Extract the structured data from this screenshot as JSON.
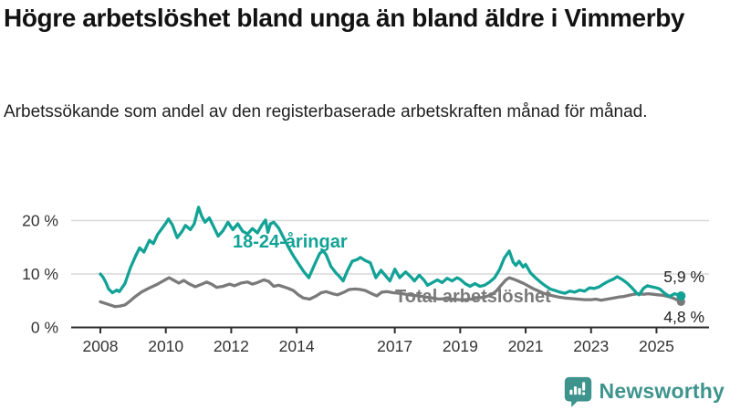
{
  "chart_data": {
    "type": "line",
    "title": "Högre arbetslöshet bland unga än bland äldre i Vimmerby",
    "subtitle": "Arbetssökande som andel av den registerbaserade arbetskraften månad för månad.",
    "xlabel": "",
    "ylabel": "",
    "xlim": [
      2007.3,
      2026.4
    ],
    "ylim": [
      0,
      24
    ],
    "grid": "horizontal",
    "legend_position": "inline-labels-on-chart",
    "x_ticks": [
      2008,
      2010,
      2012,
      2014,
      2017,
      2019,
      2021,
      2023,
      2025
    ],
    "x_tick_labels": [
      "2008",
      "2010",
      "2012",
      "2014",
      "2017",
      "2019",
      "2021",
      "2023",
      "2025"
    ],
    "y_ticks": [
      0,
      10,
      20
    ],
    "y_tick_labels": [
      "0 %",
      "10 %",
      "20 %"
    ],
    "series": [
      {
        "name": "18-24-åringar",
        "color": "#12a296",
        "end_value": 5.9,
        "end_label": "5,9 %",
        "points": [
          [
            2008.0,
            10.0
          ],
          [
            2008.08,
            9.4
          ],
          [
            2008.17,
            8.4
          ],
          [
            2008.25,
            7.2
          ],
          [
            2008.37,
            6.5
          ],
          [
            2008.5,
            7.0
          ],
          [
            2008.58,
            6.7
          ],
          [
            2008.75,
            8.2
          ],
          [
            2008.92,
            11.2
          ],
          [
            2009.08,
            13.4
          ],
          [
            2009.2,
            14.9
          ],
          [
            2009.33,
            14.1
          ],
          [
            2009.5,
            16.3
          ],
          [
            2009.62,
            15.7
          ],
          [
            2009.75,
            17.4
          ],
          [
            2009.87,
            18.4
          ],
          [
            2010.0,
            19.5
          ],
          [
            2010.08,
            20.3
          ],
          [
            2010.2,
            19.2
          ],
          [
            2010.35,
            16.8
          ],
          [
            2010.5,
            18.0
          ],
          [
            2010.6,
            19.1
          ],
          [
            2010.75,
            18.3
          ],
          [
            2010.87,
            19.4
          ],
          [
            2011.0,
            22.5
          ],
          [
            2011.1,
            20.8
          ],
          [
            2011.2,
            19.7
          ],
          [
            2011.33,
            20.5
          ],
          [
            2011.45,
            19.0
          ],
          [
            2011.6,
            17.1
          ],
          [
            2011.75,
            18.1
          ],
          [
            2011.9,
            19.7
          ],
          [
            2012.05,
            18.3
          ],
          [
            2012.2,
            19.4
          ],
          [
            2012.35,
            18.0
          ],
          [
            2012.5,
            17.5
          ],
          [
            2012.65,
            18.5
          ],
          [
            2012.8,
            17.7
          ],
          [
            2012.95,
            19.3
          ],
          [
            2013.05,
            20.1
          ],
          [
            2013.12,
            17.8
          ],
          [
            2013.2,
            19.4
          ],
          [
            2013.3,
            19.7
          ],
          [
            2013.45,
            18.6
          ],
          [
            2013.6,
            16.8
          ],
          [
            2013.75,
            15.0
          ],
          [
            2013.9,
            13.4
          ],
          [
            2014.05,
            12.0
          ],
          [
            2014.2,
            10.6
          ],
          [
            2014.37,
            9.3
          ],
          [
            2014.55,
            11.8
          ],
          [
            2014.7,
            13.8
          ],
          [
            2014.8,
            14.4
          ],
          [
            2014.9,
            13.6
          ],
          [
            2015.05,
            11.4
          ],
          [
            2015.2,
            10.2
          ],
          [
            2015.3,
            9.6
          ],
          [
            2015.42,
            8.7
          ],
          [
            2015.55,
            10.6
          ],
          [
            2015.7,
            12.4
          ],
          [
            2015.85,
            12.7
          ],
          [
            2015.95,
            13.1
          ],
          [
            2016.1,
            12.5
          ],
          [
            2016.25,
            12.1
          ],
          [
            2016.42,
            9.3
          ],
          [
            2016.58,
            10.7
          ],
          [
            2016.7,
            9.8
          ],
          [
            2016.85,
            8.7
          ],
          [
            2017.0,
            10.9
          ],
          [
            2017.15,
            9.3
          ],
          [
            2017.33,
            10.4
          ],
          [
            2017.5,
            9.4
          ],
          [
            2017.6,
            8.7
          ],
          [
            2017.75,
            9.8
          ],
          [
            2017.9,
            8.8
          ],
          [
            2018.0,
            7.9
          ],
          [
            2018.15,
            8.4
          ],
          [
            2018.3,
            8.9
          ],
          [
            2018.45,
            8.4
          ],
          [
            2018.6,
            9.2
          ],
          [
            2018.75,
            8.7
          ],
          [
            2018.9,
            9.3
          ],
          [
            2019.0,
            9.0
          ],
          [
            2019.15,
            8.2
          ],
          [
            2019.3,
            7.7
          ],
          [
            2019.45,
            8.2
          ],
          [
            2019.6,
            7.7
          ],
          [
            2019.75,
            7.9
          ],
          [
            2019.9,
            8.5
          ],
          [
            2020.05,
            9.3
          ],
          [
            2020.2,
            10.8
          ],
          [
            2020.35,
            13.0
          ],
          [
            2020.5,
            14.3
          ],
          [
            2020.62,
            12.2
          ],
          [
            2020.7,
            11.6
          ],
          [
            2020.8,
            12.4
          ],
          [
            2020.92,
            11.3
          ],
          [
            2021.0,
            11.8
          ],
          [
            2021.15,
            10.2
          ],
          [
            2021.3,
            9.3
          ],
          [
            2021.45,
            8.5
          ],
          [
            2021.6,
            7.8
          ],
          [
            2021.75,
            7.2
          ],
          [
            2021.9,
            6.9
          ],
          [
            2022.05,
            6.6
          ],
          [
            2022.2,
            6.4
          ],
          [
            2022.35,
            6.8
          ],
          [
            2022.5,
            6.6
          ],
          [
            2022.65,
            7.0
          ],
          [
            2022.8,
            6.8
          ],
          [
            2022.95,
            7.4
          ],
          [
            2023.1,
            7.3
          ],
          [
            2023.25,
            7.6
          ],
          [
            2023.4,
            8.2
          ],
          [
            2023.55,
            8.7
          ],
          [
            2023.7,
            9.1
          ],
          [
            2023.8,
            9.5
          ],
          [
            2023.95,
            9.0
          ],
          [
            2024.1,
            8.3
          ],
          [
            2024.25,
            7.4
          ],
          [
            2024.4,
            6.4
          ],
          [
            2024.47,
            6.1
          ],
          [
            2024.6,
            7.3
          ],
          [
            2024.72,
            7.8
          ],
          [
            2024.85,
            7.6
          ],
          [
            2025.0,
            7.4
          ],
          [
            2025.1,
            7.2
          ],
          [
            2025.25,
            6.4
          ],
          [
            2025.4,
            5.8
          ],
          [
            2025.55,
            6.3
          ],
          [
            2025.67,
            6.1
          ],
          [
            2025.75,
            5.9
          ]
        ]
      },
      {
        "name": "Total arbetslöshet",
        "color": "#7a7a7a",
        "end_value": 4.8,
        "end_label": "4,8 %",
        "points": [
          [
            2008.0,
            4.8
          ],
          [
            2008.15,
            4.5
          ],
          [
            2008.3,
            4.2
          ],
          [
            2008.45,
            3.9
          ],
          [
            2008.6,
            4.0
          ],
          [
            2008.75,
            4.2
          ],
          [
            2008.9,
            4.9
          ],
          [
            2009.05,
            5.7
          ],
          [
            2009.25,
            6.6
          ],
          [
            2009.5,
            7.4
          ],
          [
            2009.75,
            8.1
          ],
          [
            2009.95,
            8.8
          ],
          [
            2010.1,
            9.3
          ],
          [
            2010.25,
            8.8
          ],
          [
            2010.4,
            8.3
          ],
          [
            2010.55,
            8.8
          ],
          [
            2010.7,
            8.2
          ],
          [
            2010.9,
            7.6
          ],
          [
            2011.1,
            8.1
          ],
          [
            2011.25,
            8.5
          ],
          [
            2011.4,
            8.1
          ],
          [
            2011.55,
            7.5
          ],
          [
            2011.75,
            7.7
          ],
          [
            2011.95,
            8.1
          ],
          [
            2012.1,
            7.8
          ],
          [
            2012.3,
            8.3
          ],
          [
            2012.5,
            8.5
          ],
          [
            2012.65,
            8.1
          ],
          [
            2012.8,
            8.4
          ],
          [
            2013.0,
            8.9
          ],
          [
            2013.15,
            8.6
          ],
          [
            2013.3,
            7.7
          ],
          [
            2013.45,
            7.9
          ],
          [
            2013.6,
            7.6
          ],
          [
            2013.75,
            7.3
          ],
          [
            2013.9,
            6.9
          ],
          [
            2014.05,
            6.1
          ],
          [
            2014.2,
            5.5
          ],
          [
            2014.4,
            5.3
          ],
          [
            2014.6,
            5.9
          ],
          [
            2014.75,
            6.5
          ],
          [
            2014.9,
            6.7
          ],
          [
            2015.1,
            6.3
          ],
          [
            2015.25,
            6.1
          ],
          [
            2015.45,
            6.6
          ],
          [
            2015.6,
            7.1
          ],
          [
            2015.8,
            7.2
          ],
          [
            2015.95,
            7.1
          ],
          [
            2016.1,
            6.9
          ],
          [
            2016.3,
            6.3
          ],
          [
            2016.45,
            5.9
          ],
          [
            2016.6,
            6.6
          ],
          [
            2016.75,
            6.7
          ],
          [
            2016.95,
            6.5
          ],
          [
            2017.15,
            6.4
          ],
          [
            2017.35,
            6.2
          ],
          [
            2017.55,
            6.0
          ],
          [
            2017.75,
            5.9
          ],
          [
            2017.95,
            5.7
          ],
          [
            2018.15,
            5.5
          ],
          [
            2018.35,
            5.3
          ],
          [
            2018.55,
            5.4
          ],
          [
            2018.75,
            5.3
          ],
          [
            2018.95,
            5.2
          ],
          [
            2019.15,
            5.2
          ],
          [
            2019.35,
            5.3
          ],
          [
            2019.55,
            5.5
          ],
          [
            2019.75,
            5.7
          ],
          [
            2019.95,
            6.1
          ],
          [
            2020.1,
            6.8
          ],
          [
            2020.25,
            7.9
          ],
          [
            2020.4,
            8.9
          ],
          [
            2020.5,
            9.3
          ],
          [
            2020.65,
            9.0
          ],
          [
            2020.8,
            8.6
          ],
          [
            2020.95,
            8.2
          ],
          [
            2021.1,
            7.7
          ],
          [
            2021.25,
            7.2
          ],
          [
            2021.4,
            6.8
          ],
          [
            2021.55,
            6.4
          ],
          [
            2021.7,
            6.1
          ],
          [
            2021.85,
            5.9
          ],
          [
            2022.0,
            5.7
          ],
          [
            2022.2,
            5.5
          ],
          [
            2022.4,
            5.4
          ],
          [
            2022.6,
            5.3
          ],
          [
            2022.8,
            5.2
          ],
          [
            2023.0,
            5.2
          ],
          [
            2023.15,
            5.3
          ],
          [
            2023.3,
            5.1
          ],
          [
            2023.5,
            5.3
          ],
          [
            2023.7,
            5.5
          ],
          [
            2023.85,
            5.7
          ],
          [
            2024.0,
            5.8
          ],
          [
            2024.15,
            6.0
          ],
          [
            2024.3,
            6.2
          ],
          [
            2024.45,
            6.3
          ],
          [
            2024.6,
            6.2
          ],
          [
            2024.75,
            6.3
          ],
          [
            2024.9,
            6.2
          ],
          [
            2025.05,
            6.1
          ],
          [
            2025.2,
            6.0
          ],
          [
            2025.35,
            5.8
          ],
          [
            2025.5,
            5.5
          ],
          [
            2025.65,
            5.1
          ],
          [
            2025.75,
            4.8
          ]
        ]
      }
    ],
    "colors": {
      "axis_line": "#2e2e2e",
      "gridline": "#d9d9d9",
      "tick_text": "#333333",
      "end_label_text": "#222222"
    }
  },
  "branding": {
    "logo_text": "Newsworthy",
    "logo_color": "#3e948d",
    "logo_icon": "newsworthy-speech-bubble-bar-chart-icon"
  }
}
